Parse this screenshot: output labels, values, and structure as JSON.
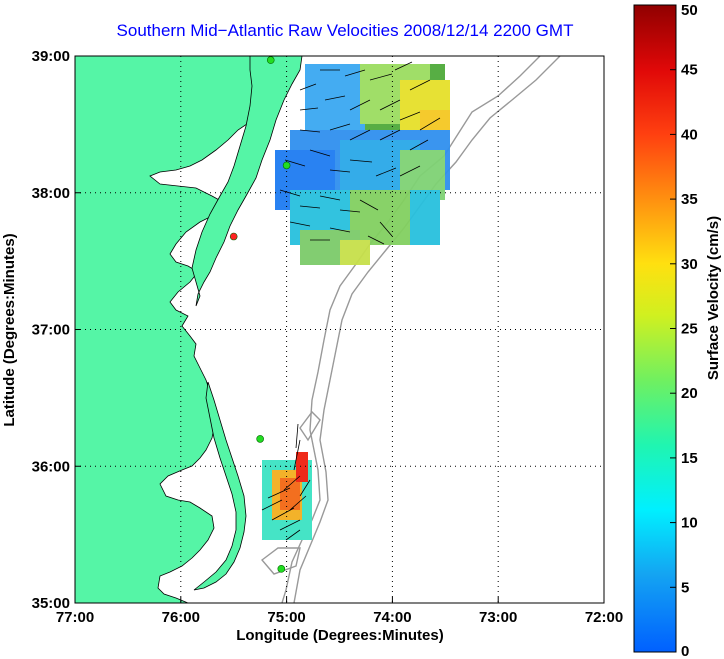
{
  "title": "Southern Mid−Atlantic Raw Velocities 2008/12/14 2200 GMT",
  "map": {
    "xlabel": "Longitude (Degrees:Minutes)",
    "ylabel": "Latitude (Degrees:Minutes)",
    "lon_range": [
      -77,
      -72
    ],
    "lat_range": [
      35,
      39
    ],
    "lon_ticks": [
      {
        "value": -77,
        "label": "77:00"
      },
      {
        "value": -76,
        "label": "76:00"
      },
      {
        "value": -75,
        "label": "75:00"
      },
      {
        "value": -74,
        "label": "74:00"
      },
      {
        "value": -73,
        "label": "73:00"
      },
      {
        "value": -72,
        "label": "72:00"
      }
    ],
    "lat_ticks": [
      {
        "value": 39,
        "label": "39:00"
      },
      {
        "value": 38,
        "label": "38:00"
      },
      {
        "value": 37,
        "label": "37:00"
      },
      {
        "value": 36,
        "label": "36:00"
      },
      {
        "value": 35,
        "label": "35:00"
      }
    ],
    "land_color": "#55f5a6",
    "grid": "dotted"
  },
  "stations": [
    {
      "lon": -75.15,
      "lat": 38.97,
      "color": "#22dd22"
    },
    {
      "lon": -75.0,
      "lat": 38.2,
      "color": "#22dd22"
    },
    {
      "lon": -75.5,
      "lat": 37.68,
      "color": "#ff2222"
    },
    {
      "lon": -75.25,
      "lat": 36.2,
      "color": "#22dd22"
    },
    {
      "lon": -75.05,
      "lat": 35.25,
      "color": "#22dd22"
    }
  ],
  "colorbar": {
    "label": "Surface Velocity (cm/s)",
    "min": 0,
    "max": 50,
    "ticks": [
      {
        "value": 50,
        "label": "50"
      },
      {
        "value": 45,
        "label": "45"
      },
      {
        "value": 40,
        "label": "40"
      },
      {
        "value": 35,
        "label": "35"
      },
      {
        "value": 30,
        "label": "30"
      },
      {
        "value": 25,
        "label": "25"
      },
      {
        "value": 20,
        "label": "20"
      },
      {
        "value": 15,
        "label": "15"
      },
      {
        "value": 10,
        "label": "10"
      },
      {
        "value": 5,
        "label": "5"
      },
      {
        "value": 0,
        "label": "0"
      }
    ]
  }
}
